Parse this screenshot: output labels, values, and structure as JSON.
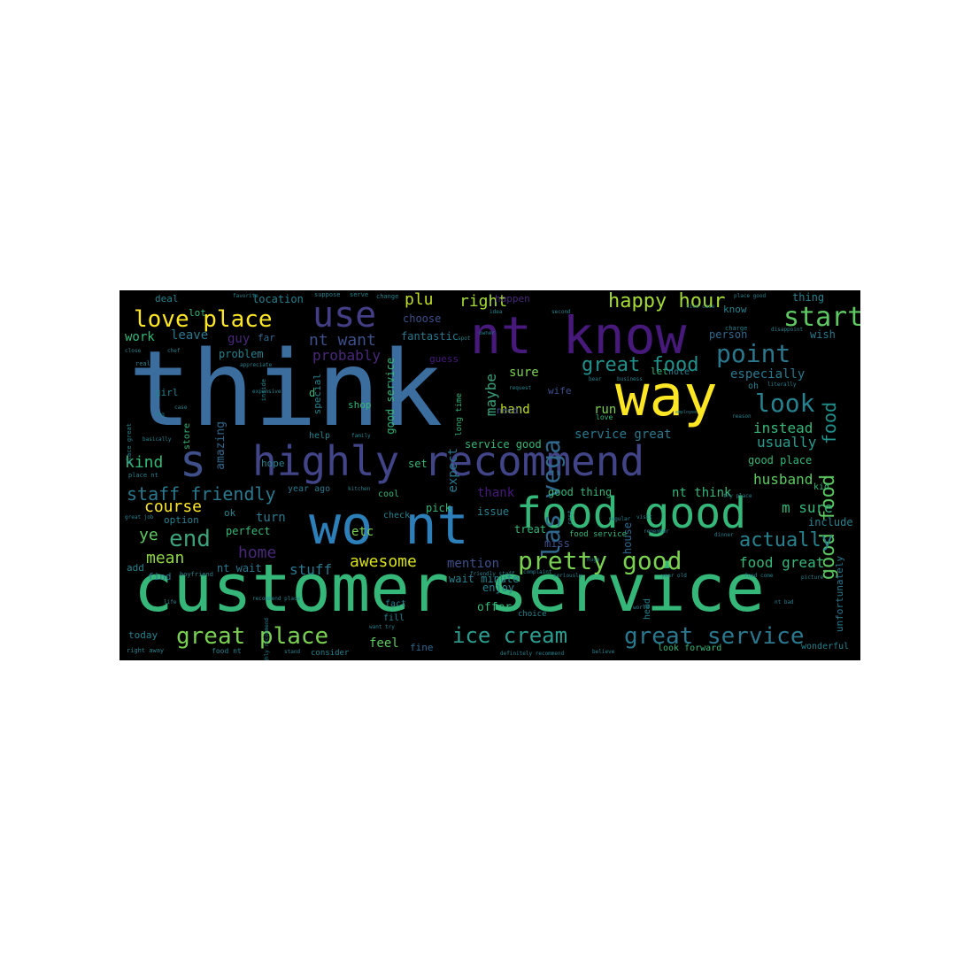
{
  "colors": {
    "background": "#000000",
    "page": "#ffffff"
  },
  "words": [
    {
      "id": "think",
      "text": "think",
      "color": "#3b6e9e"
    },
    {
      "id": "customer-service",
      "text": "customer service",
      "color": "#35b779"
    },
    {
      "id": "nt-know",
      "text": "nt know",
      "color": "#46197a"
    },
    {
      "id": "way",
      "text": "way",
      "color": "#fde725"
    },
    {
      "id": "highly-recommend",
      "text": "highly recommend",
      "color": "#414487"
    },
    {
      "id": "s",
      "text": "s",
      "color": "#3e4f8a"
    },
    {
      "id": "wo-nt",
      "text": "wo nt",
      "color": "#2c7fb8"
    },
    {
      "id": "food-good",
      "text": "food good",
      "color": "#35b779"
    },
    {
      "id": "use",
      "text": "use",
      "color": "#433e85"
    },
    {
      "id": "las-vega",
      "text": "las vega",
      "color": "#31688e"
    },
    {
      "id": "love-place",
      "text": "love place",
      "color": "#fde725"
    },
    {
      "id": "start",
      "text": "start",
      "color": "#5ec962"
    },
    {
      "id": "happy-hour",
      "text": "happy hour",
      "color": "#a5db36"
    },
    {
      "id": "point",
      "text": "point",
      "color": "#2a788e"
    },
    {
      "id": "look",
      "text": "look",
      "color": "#26828e"
    },
    {
      "id": "great-food",
      "text": "great food",
      "color": "#21918c"
    },
    {
      "id": "good-food",
      "text": "good food",
      "color": "#5ec962"
    },
    {
      "id": "food-vertical",
      "text": "food",
      "color": "#21918c"
    },
    {
      "id": "pretty-good",
      "text": "pretty good",
      "color": "#7ad151"
    },
    {
      "id": "ice-cream",
      "text": "ice cream",
      "color": "#2a9d8f"
    },
    {
      "id": "great-service",
      "text": "great service",
      "color": "#2a788e"
    },
    {
      "id": "great-place",
      "text": "great place",
      "color": "#7ad151"
    },
    {
      "id": "end",
      "text": "end",
      "color": "#3ba27a"
    },
    {
      "id": "staff-friendly",
      "text": "staff friendly",
      "color": "#2a788e"
    },
    {
      "id": "actually",
      "text": "actually",
      "color": "#26828e"
    },
    {
      "id": "awesome",
      "text": "awesome",
      "color": "#d8e219"
    },
    {
      "id": "plu",
      "text": "plu",
      "color": "#c2df23"
    },
    {
      "id": "right",
      "text": "right",
      "color": "#a5db36"
    },
    {
      "id": "nt-want",
      "text": "nt want",
      "color": "#3e4f8a"
    },
    {
      "id": "probably",
      "text": "probably",
      "color": "#482878"
    },
    {
      "id": "course",
      "text": "course",
      "color": "#fde725"
    },
    {
      "id": "kind",
      "text": "kind",
      "color": "#35b779"
    },
    {
      "id": "mean",
      "text": "mean",
      "color": "#90d743"
    },
    {
      "id": "home",
      "text": "home",
      "color": "#482878"
    },
    {
      "id": "stuff",
      "text": "stuff",
      "color": "#2a788e"
    },
    {
      "id": "husband",
      "text": "husband",
      "color": "#5ec962"
    },
    {
      "id": "m-sure",
      "text": "m sure",
      "color": "#35b779"
    },
    {
      "id": "instead",
      "text": "instead",
      "color": "#35b779"
    },
    {
      "id": "usually",
      "text": "usually",
      "color": "#2a9d8f"
    },
    {
      "id": "especially",
      "text": "especially",
      "color": "#2a788e"
    },
    {
      "id": "food-great",
      "text": "food great",
      "color": "#35b779"
    },
    {
      "id": "service-great",
      "text": "service great",
      "color": "#2a788e"
    },
    {
      "id": "nt-think",
      "text": "nt think",
      "color": "#35b779"
    },
    {
      "id": "maybe",
      "text": "maybe",
      "color": "#3ba27a"
    },
    {
      "id": "hand",
      "text": "hand",
      "color": "#c2df23"
    },
    {
      "id": "run",
      "text": "run",
      "color": "#7ad151"
    },
    {
      "id": "sure",
      "text": "sure",
      "color": "#7ad151"
    },
    {
      "id": "expect",
      "text": "expect",
      "color": "#2a788e"
    },
    {
      "id": "mention",
      "text": "mention",
      "color": "#3e4f8a"
    },
    {
      "id": "enjoy",
      "text": "enjoy",
      "color": "#26828e"
    },
    {
      "id": "offer",
      "text": "offer",
      "color": "#35b779"
    },
    {
      "id": "feel",
      "text": "feel",
      "color": "#5ec962"
    },
    {
      "id": "work",
      "text": "work",
      "color": "#35b779"
    },
    {
      "id": "leave",
      "text": "leave",
      "color": "#2a788e"
    },
    {
      "id": "guy",
      "text": "guy",
      "color": "#482878"
    },
    {
      "id": "amazing",
      "text": "amazing",
      "color": "#31688e"
    },
    {
      "id": "ye",
      "text": "ye",
      "color": "#5ec962"
    },
    {
      "id": "turn",
      "text": "turn",
      "color": "#2a788e"
    },
    {
      "id": "etc",
      "text": "etc",
      "color": "#7ad151"
    },
    {
      "id": "fantastic",
      "text": "fantastic",
      "color": "#2a788e"
    },
    {
      "id": "choose",
      "text": "choose",
      "color": "#3e4f8a"
    },
    {
      "id": "location",
      "text": "location",
      "color": "#26828e"
    },
    {
      "id": "problem",
      "text": "problem",
      "color": "#26828e"
    },
    {
      "id": "good-place",
      "text": "good place",
      "color": "#35b779"
    },
    {
      "id": "good-service",
      "text": "good service",
      "color": "#35b779"
    },
    {
      "id": "service-good",
      "text": "service good",
      "color": "#35b779"
    },
    {
      "id": "good-thing",
      "text": "good thing",
      "color": "#35b779"
    },
    {
      "id": "thank",
      "text": "thank",
      "color": "#46197a"
    },
    {
      "id": "wait-minute",
      "text": "wait minute",
      "color": "#26828e"
    },
    {
      "id": "nt-wait",
      "text": "nt wait",
      "color": "#2a788e"
    },
    {
      "id": "perfect",
      "text": "perfect",
      "color": "#35b779"
    },
    {
      "id": "option",
      "text": "option",
      "color": "#26828e"
    },
    {
      "id": "today",
      "text": "today",
      "color": "#26828e"
    },
    {
      "id": "fine",
      "text": "fine",
      "color": "#31688e"
    },
    {
      "id": "add",
      "text": "add",
      "color": "#26828e"
    },
    {
      "id": "find",
      "text": "find",
      "color": "#2a788e"
    },
    {
      "id": "ok",
      "text": "ok",
      "color": "#26828e"
    },
    {
      "id": "hope",
      "text": "hope",
      "color": "#26828e"
    },
    {
      "id": "set",
      "text": "set",
      "color": "#35b779"
    },
    {
      "id": "pick",
      "text": "pick",
      "color": "#35b779"
    },
    {
      "id": "issue",
      "text": "issue",
      "color": "#26828e"
    },
    {
      "id": "treat",
      "text": "treat",
      "color": "#35b779"
    },
    {
      "id": "miss",
      "text": "miss",
      "color": "#3e4f8a"
    },
    {
      "id": "house",
      "text": "house",
      "color": "#31688e"
    },
    {
      "id": "include",
      "text": "include",
      "color": "#26828e"
    },
    {
      "id": "unfortunately",
      "text": "unfortunately",
      "color": "#2a788e"
    },
    {
      "id": "wonderful",
      "text": "wonderful",
      "color": "#26828e"
    },
    {
      "id": "look-forward",
      "text": "look forward",
      "color": "#35b779"
    },
    {
      "id": "thing",
      "text": "thing",
      "color": "#26828e"
    },
    {
      "id": "wish",
      "text": "wish",
      "color": "#2a788e"
    },
    {
      "id": "person",
      "text": "person",
      "color": "#31688e"
    },
    {
      "id": "know",
      "text": "know",
      "color": "#26828e"
    },
    {
      "id": "let",
      "text": "let",
      "color": "#35b779"
    },
    {
      "id": "note",
      "text": "note",
      "color": "#26828e"
    },
    {
      "id": "wife",
      "text": "wife",
      "color": "#3e4f8a"
    },
    {
      "id": "guess",
      "text": "guess",
      "color": "#46197a"
    },
    {
      "id": "happen",
      "text": "happen",
      "color": "#482878"
    },
    {
      "id": "deal",
      "text": "deal",
      "color": "#26828e"
    },
    {
      "id": "lot",
      "text": "lot",
      "color": "#35b779"
    },
    {
      "id": "far",
      "text": "far",
      "color": "#31688e"
    },
    {
      "id": "girl",
      "text": "girl",
      "color": "#26828e"
    },
    {
      "id": "store",
      "text": "store",
      "color": "#35b779"
    },
    {
      "id": "special",
      "text": "special",
      "color": "#26828e"
    },
    {
      "id": "shop",
      "text": "shop",
      "color": "#35b779"
    },
    {
      "id": "help",
      "text": "help",
      "color": "#26828e"
    },
    {
      "id": "cool",
      "text": "cool",
      "color": "#35b779"
    },
    {
      "id": "need",
      "text": "need",
      "color": "#3e4f8a"
    },
    {
      "id": "fact",
      "text": "fact",
      "color": "#26828e"
    },
    {
      "id": "consider",
      "text": "consider",
      "color": "#26828e"
    },
    {
      "id": "fill",
      "text": "fill",
      "color": "#26828e"
    },
    {
      "id": "check",
      "text": "check",
      "color": "#26828e"
    },
    {
      "id": "year-ago",
      "text": "year ago",
      "color": "#2a788e"
    },
    {
      "id": "kid",
      "text": "kid",
      "color": "#35b779"
    },
    {
      "id": "oh",
      "text": "oh",
      "color": "#26828e"
    },
    {
      "id": "food-service",
      "text": "food service",
      "color": "#35b779"
    },
    {
      "id": "long-time",
      "text": "long time",
      "color": "#35b779"
    },
    {
      "id": "d",
      "text": "d",
      "color": "#35b779"
    },
    {
      "id": "suppose",
      "text": "suppose",
      "color": "#26828e"
    },
    {
      "id": "serve",
      "text": "serve",
      "color": "#26828e"
    },
    {
      "id": "change",
      "text": "change",
      "color": "#26828e"
    },
    {
      "id": "idea",
      "text": "idea",
      "color": "#26828e"
    },
    {
      "id": "second",
      "text": "second",
      "color": "#26828e"
    },
    {
      "id": "live-case",
      "text": "live case",
      "color": "#26828e"
    },
    {
      "id": "place-good",
      "text": "place good",
      "color": "#26828e"
    },
    {
      "id": "charge",
      "text": "charge",
      "color": "#26828e"
    },
    {
      "id": "disappoint",
      "text": "disappoint",
      "color": "#26828e"
    },
    {
      "id": "literally",
      "text": "literally",
      "color": "#26828e"
    },
    {
      "id": "reason",
      "text": "reason",
      "color": "#26828e"
    },
    {
      "id": "business",
      "text": "business",
      "color": "#26828e"
    },
    {
      "id": "appreciate",
      "text": "appreciate",
      "color": "#26828e"
    },
    {
      "id": "inside",
      "text": "inside",
      "color": "#26828e"
    },
    {
      "id": "close",
      "text": "close",
      "color": "#26828e"
    },
    {
      "id": "real",
      "text": "real",
      "color": "#26828e"
    },
    {
      "id": "place-great",
      "text": "place great",
      "color": "#26828e"
    },
    {
      "id": "place-nt",
      "text": "place nt",
      "color": "#26828e"
    },
    {
      "id": "basically",
      "text": "basically",
      "color": "#26828e"
    },
    {
      "id": "family",
      "text": "family",
      "color": "#26828e"
    },
    {
      "id": "kitchen",
      "text": "kitchen",
      "color": "#26828e"
    },
    {
      "id": "employee",
      "text": "employee",
      "color": "#26828e"
    },
    {
      "id": "try-place",
      "text": "try place",
      "color": "#26828e"
    },
    {
      "id": "complaint",
      "text": "complaint",
      "color": "#26828e"
    },
    {
      "id": "dinner",
      "text": "dinner",
      "color": "#26828e"
    },
    {
      "id": "regular",
      "text": "regular",
      "color": "#26828e"
    },
    {
      "id": "cost",
      "text": "cost",
      "color": "#26828e"
    },
    {
      "id": "love",
      "text": "love",
      "color": "#35b779"
    },
    {
      "id": "choice",
      "text": "choice",
      "color": "#26828e"
    },
    {
      "id": "food-come",
      "text": "food come",
      "color": "#26828e"
    },
    {
      "id": "picture",
      "text": "picture",
      "color": "#26828e"
    },
    {
      "id": "friendly-staff",
      "text": "friendly staff",
      "color": "#26828e"
    },
    {
      "id": "seriously",
      "text": "seriously",
      "color": "#26828e"
    },
    {
      "id": "definitely-recommend",
      "text": "definitely recommend",
      "color": "#26828e"
    },
    {
      "id": "believe",
      "text": "believe",
      "color": "#26828e"
    },
    {
      "id": "food-nt",
      "text": "food nt",
      "color": "#26828e"
    },
    {
      "id": "right-away",
      "text": "right away",
      "color": "#26828e"
    },
    {
      "id": "stand",
      "text": "stand",
      "color": "#26828e"
    },
    {
      "id": "highly-recommend-small",
      "text": "highly recommend",
      "color": "#26828e"
    },
    {
      "id": "recommend-place",
      "text": "recommend place",
      "color": "#26828e"
    },
    {
      "id": "great-job",
      "text": "great job",
      "color": "#26828e"
    },
    {
      "id": "boyfriend",
      "text": "boyfriend",
      "color": "#26828e"
    },
    {
      "id": "life",
      "text": "life",
      "color": "#26828e"
    },
    {
      "id": "want-try",
      "text": "want try",
      "color": "#26828e"
    },
    {
      "id": "year-old",
      "text": "year old",
      "color": "#26828e"
    },
    {
      "id": "nt-bad",
      "text": "nt bad",
      "color": "#26828e"
    },
    {
      "id": "huge",
      "text": "huge",
      "color": "#26828e"
    },
    {
      "id": "head",
      "text": "head",
      "color": "#26828e"
    },
    {
      "id": "world",
      "text": "world",
      "color": "#26828e"
    },
    {
      "id": "favorite",
      "text": "favorite",
      "color": "#26828e"
    },
    {
      "id": "chef",
      "text": "chef",
      "color": "#26828e"
    },
    {
      "id": "owner",
      "text": "owner",
      "color": "#26828e"
    },
    {
      "id": "request",
      "text": "request",
      "color": "#26828e"
    },
    {
      "id": "expensive",
      "text": "expensive",
      "color": "#26828e"
    },
    {
      "id": "visit",
      "text": "visit",
      "color": "#26828e"
    },
    {
      "id": "spot",
      "text": "spot",
      "color": "#26828e"
    },
    {
      "id": "bear",
      "text": "bear",
      "color": "#26828e"
    },
    {
      "id": "remember",
      "text": "remember",
      "color": "#26828e"
    },
    {
      "id": "case",
      "text": "case",
      "color": "#26828e"
    },
    {
      "id": "dog",
      "text": "dog",
      "color": "#26828e"
    }
  ]
}
